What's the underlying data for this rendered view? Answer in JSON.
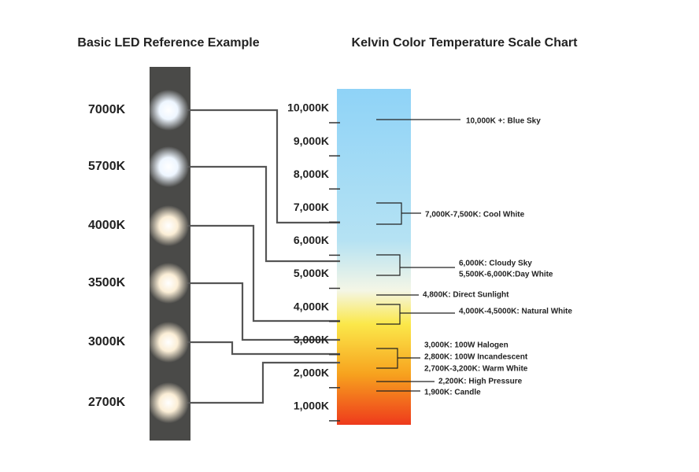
{
  "left": {
    "title": "Basic LED Reference Example",
    "leds": [
      "7000K",
      "5700K",
      "4000K",
      "3500K",
      "3000K",
      "2700K"
    ]
  },
  "right": {
    "title": "Kelvin Color Temperature Scale Chart",
    "scale": [
      "10,000K",
      "9,000K",
      "8,000K",
      "7,000K",
      "6,000K",
      "5,000K",
      "4,000K",
      "3,000K",
      "2,000K",
      "1,000K"
    ],
    "annotations": [
      "10,000K +: Blue Sky",
      "7,000K-7,500K: Cool White",
      "6,000K: Cloudy Sky",
      "5,500K-6,000K:Day White",
      "4,800K: Direct Sunlight",
      "4,000K-4,5000K: Natural White",
      "3,000K: 100W Halogen",
      "2,800K: 100W Incandescent",
      "2,700K-3,200K: Warm White",
      "2,200K: High Pressure",
      "1,900K: Candle"
    ]
  }
}
